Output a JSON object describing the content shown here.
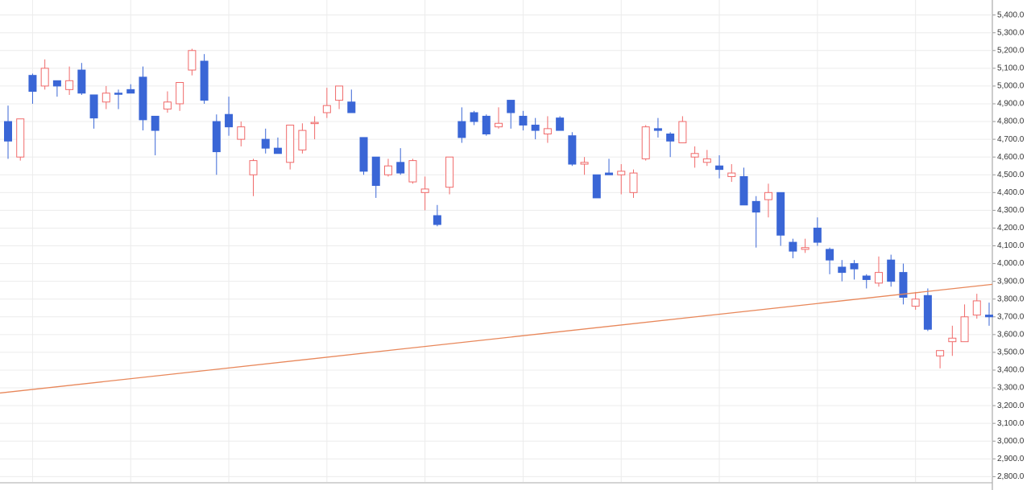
{
  "chart_data": {
    "type": "candlestick",
    "open": [
      4800,
      4600,
      5060,
      5000,
      5030,
      4980,
      5090,
      4950,
      4910,
      4960,
      4980,
      5050,
      4830,
      4870,
      4900,
      5090,
      5140,
      4800,
      4840,
      4700,
      4500,
      4700,
      4650,
      4570,
      4640,
      4790,
      4850,
      4920,
      4910,
      4710,
      4600,
      4500,
      4570,
      4460,
      4400,
      4270,
      4430,
      4800,
      4850,
      4830,
      4770,
      4920,
      4830,
      4780,
      4730,
      4820,
      4720,
      4560,
      4500,
      4510,
      4500,
      4400,
      4590,
      4760,
      4730,
      4680,
      4600,
      4570,
      4550,
      4490,
      4490,
      4350,
      4360,
      4400,
      4120,
      4080,
      4200,
      4080,
      3980,
      4000,
      3930,
      3890,
      4020,
      3950,
      3760,
      3820,
      3480,
      3560,
      3560,
      3710,
      3710
    ],
    "high": [
      4890,
      4815,
      5070,
      5150,
      5030,
      5110,
      5130,
      4950,
      5000,
      4980,
      5010,
      5110,
      4830,
      4970,
      5020,
      5210,
      5180,
      4840,
      4940,
      4800,
      4590,
      4760,
      4710,
      4780,
      4790,
      4830,
      4990,
      5000,
      4980,
      4710,
      4600,
      4590,
      4650,
      4590,
      4490,
      4330,
      4600,
      4880,
      4860,
      4840,
      4880,
      4920,
      4860,
      4820,
      4830,
      4830,
      4740,
      4600,
      4500,
      4590,
      4560,
      4530,
      4780,
      4820,
      4740,
      4830,
      4660,
      4640,
      4610,
      4560,
      4540,
      4380,
      4450,
      4400,
      4140,
      4140,
      4260,
      4090,
      4020,
      4020,
      3940,
      4040,
      4050,
      4000,
      3840,
      3860,
      3510,
      3650,
      3770,
      3830,
      3780
    ],
    "low": [
      4590,
      4580,
      4900,
      4980,
      4940,
      4950,
      4950,
      4760,
      4870,
      4870,
      4960,
      4750,
      4610,
      4850,
      4860,
      5060,
      4900,
      4500,
      4720,
      4660,
      4380,
      4620,
      4620,
      4530,
      4620,
      4700,
      4820,
      4870,
      4850,
      4500,
      4370,
      4490,
      4500,
      4450,
      4300,
      4210,
      4390,
      4680,
      4780,
      4720,
      4760,
      4760,
      4750,
      4700,
      4680,
      4750,
      4550,
      4500,
      4370,
      4500,
      4390,
      4370,
      4580,
      4710,
      4600,
      4680,
      4540,
      4550,
      4480,
      4460,
      4330,
      4090,
      4260,
      4100,
      4030,
      4060,
      4100,
      3940,
      3900,
      3910,
      3860,
      3870,
      3870,
      3770,
      3740,
      3620,
      3410,
      3480,
      3560,
      3690,
      3650
    ],
    "close": [
      4690,
      4815,
      4970,
      5100,
      5000,
      5030,
      4960,
      4820,
      4960,
      4955,
      4960,
      4810,
      4750,
      4910,
      5020,
      5200,
      4920,
      4630,
      4770,
      4770,
      4580,
      4650,
      4620,
      4780,
      4750,
      4795,
      4890,
      5000,
      4850,
      4520,
      4440,
      4550,
      4510,
      4580,
      4420,
      4220,
      4600,
      4710,
      4800,
      4730,
      4790,
      4850,
      4780,
      4750,
      4760,
      4750,
      4560,
      4570,
      4370,
      4500,
      4520,
      4510,
      4770,
      4750,
      4690,
      4800,
      4620,
      4590,
      4530,
      4510,
      4330,
      4290,
      4400,
      4160,
      4070,
      4090,
      4120,
      4020,
      3950,
      3970,
      3910,
      3950,
      3900,
      3810,
      3800,
      3630,
      3510,
      3580,
      3700,
      3790,
      3700
    ],
    "up_color": "#f06a6a",
    "down_color": "#3a66d6",
    "trendline": {
      "start": 3271,
      "end": 3883,
      "color": "#e8875a"
    },
    "ylim": [
      2770,
      5480
    ],
    "yticks": [
      {
        "value": 2800,
        "label": "2,800.0"
      },
      {
        "value": 2900,
        "label": "2,900.0"
      },
      {
        "value": 3000,
        "label": "3,000.0"
      },
      {
        "value": 3100,
        "label": "3,100.0"
      },
      {
        "value": 3200,
        "label": "3,200.0"
      },
      {
        "value": 3300,
        "label": "3,300.0"
      },
      {
        "value": 3400,
        "label": "3,400.0"
      },
      {
        "value": 3500,
        "label": "3,500.0"
      },
      {
        "value": 3600,
        "label": "3,600.0"
      },
      {
        "value": 3700,
        "label": "3,700.0"
      },
      {
        "value": 3800,
        "label": "3,800.0"
      },
      {
        "value": 3900,
        "label": "3,900.0"
      },
      {
        "value": 4000,
        "label": "4,000.0"
      },
      {
        "value": 4100,
        "label": "4,100.0"
      },
      {
        "value": 4200,
        "label": "4,200.0"
      },
      {
        "value": 4300,
        "label": "4,300.0"
      },
      {
        "value": 4400,
        "label": "4,400.0"
      },
      {
        "value": 4500,
        "label": "4,500.0"
      },
      {
        "value": 4600,
        "label": "4,600.0"
      },
      {
        "value": 4700,
        "label": "4,700.0"
      },
      {
        "value": 4800,
        "label": "4,800.0"
      },
      {
        "value": 4900,
        "label": "4,900.0"
      },
      {
        "value": 5000,
        "label": "5,000.0"
      },
      {
        "value": 5100,
        "label": "5,100.0"
      },
      {
        "value": 5200,
        "label": "5,200.0"
      },
      {
        "value": 5300,
        "label": "5,300.0"
      },
      {
        "value": 5400,
        "label": "5,400.0"
      }
    ],
    "grid": true
  }
}
